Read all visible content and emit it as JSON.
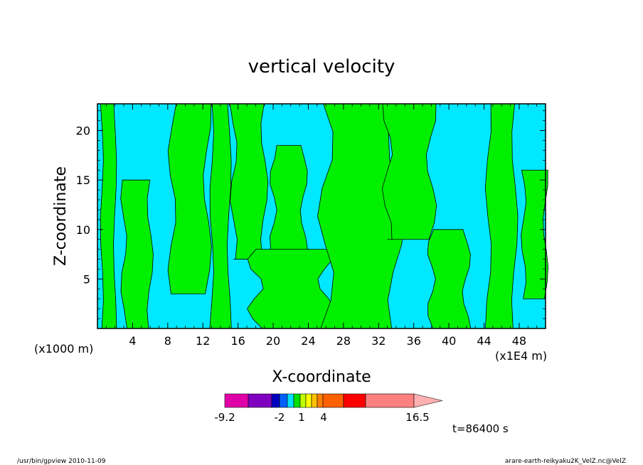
{
  "chart_data": {
    "type": "heatmap",
    "title": "vertical velocity",
    "xlabel": "X-coordinate",
    "ylabel": "Z-coordinate",
    "x_unit_left": "(x1000 m)",
    "x_unit_right": "(x1E4 m)",
    "x_ticks": [
      "4",
      "8",
      "12",
      "16",
      "20",
      "24",
      "28",
      "32",
      "36",
      "40",
      "44",
      "48"
    ],
    "y_ticks": [
      "5",
      "10",
      "15",
      "20"
    ],
    "xlim": [
      0,
      51
    ],
    "ylim": [
      0,
      22.7
    ],
    "field_regions": {
      "green_bands_x": [
        [
          0.5,
          2.0,
          0.0,
          22.7
        ],
        [
          3.0,
          6.0,
          0.0,
          15.0
        ],
        [
          8.5,
          12.5,
          3.5,
          22.7
        ],
        [
          13.0,
          15.0,
          0.0,
          22.7
        ],
        [
          15.5,
          19.0,
          7.0,
          22.7
        ],
        [
          18.0,
          26.0,
          0.0,
          8.0
        ],
        [
          20.0,
          23.5,
          8.0,
          18.5
        ],
        [
          26.0,
          34.0,
          0.0,
          22.7
        ],
        [
          33.0,
          38.0,
          9.0,
          22.7
        ],
        [
          38.0,
          42.0,
          0.0,
          10.0
        ],
        [
          44.5,
          47.5,
          0.0,
          22.7
        ],
        [
          48.5,
          51.0,
          3.0,
          16.0
        ]
      ]
    },
    "colorbar": {
      "labels": [
        "-9.2",
        "-2",
        "1",
        "4",
        "16.5"
      ],
      "colors": [
        "#e000a8",
        "#8000c0",
        "#0000c0",
        "#0060ff",
        "#00e0ff",
        "#00e000",
        "#c0ff00",
        "#ffff00",
        "#ffc000",
        "#ff8000",
        "#ff6000",
        "#ff0000",
        "#ff8080",
        "#ffb0b0"
      ]
    },
    "grid": false
  },
  "annotations": {
    "time": "t=86400 s",
    "footer_left": "/usr/bin/gpview  2010-11-09",
    "footer_right": "arare-earth-reikyaku2K_VelZ.nc@VelZ"
  }
}
